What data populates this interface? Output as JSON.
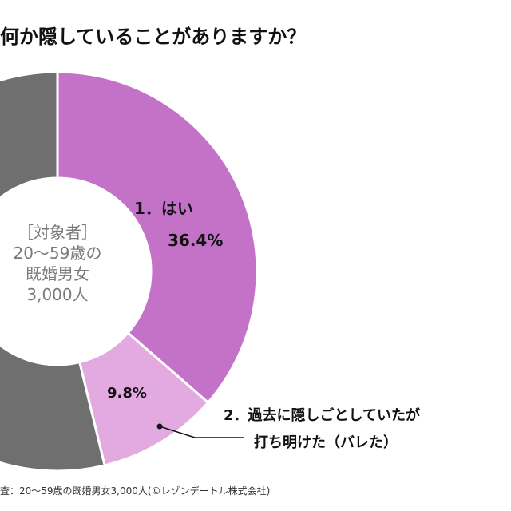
{
  "title": "何か隠していることがありますか？",
  "center_label": {
    "lines": [
      "［対象者］",
      "20～59歳の",
      "既婚男女",
      "3,000人"
    ]
  },
  "footnote": "査：20～59歳の既婚男女3,000人(©レゾンデートル株式会社)",
  "colors": {
    "hai": "#c472c8",
    "revealed": "#e3a9e1",
    "other": "#6f6f6f",
    "center_text": "#7a7a7a"
  },
  "chart_data": {
    "type": "pie",
    "donut": true,
    "slices": [
      {
        "label": "1．はい",
        "value": 36.4,
        "value_label": "36.4%",
        "color": "#c472c8"
      },
      {
        "label": "2．過去に隠しごとしていたが\n打ち明けた（バレた）",
        "value": 9.8,
        "value_label": "9.8%",
        "color": "#e3a9e1"
      },
      {
        "value": 53.8,
        "color": "#6f6f6f"
      }
    ]
  }
}
